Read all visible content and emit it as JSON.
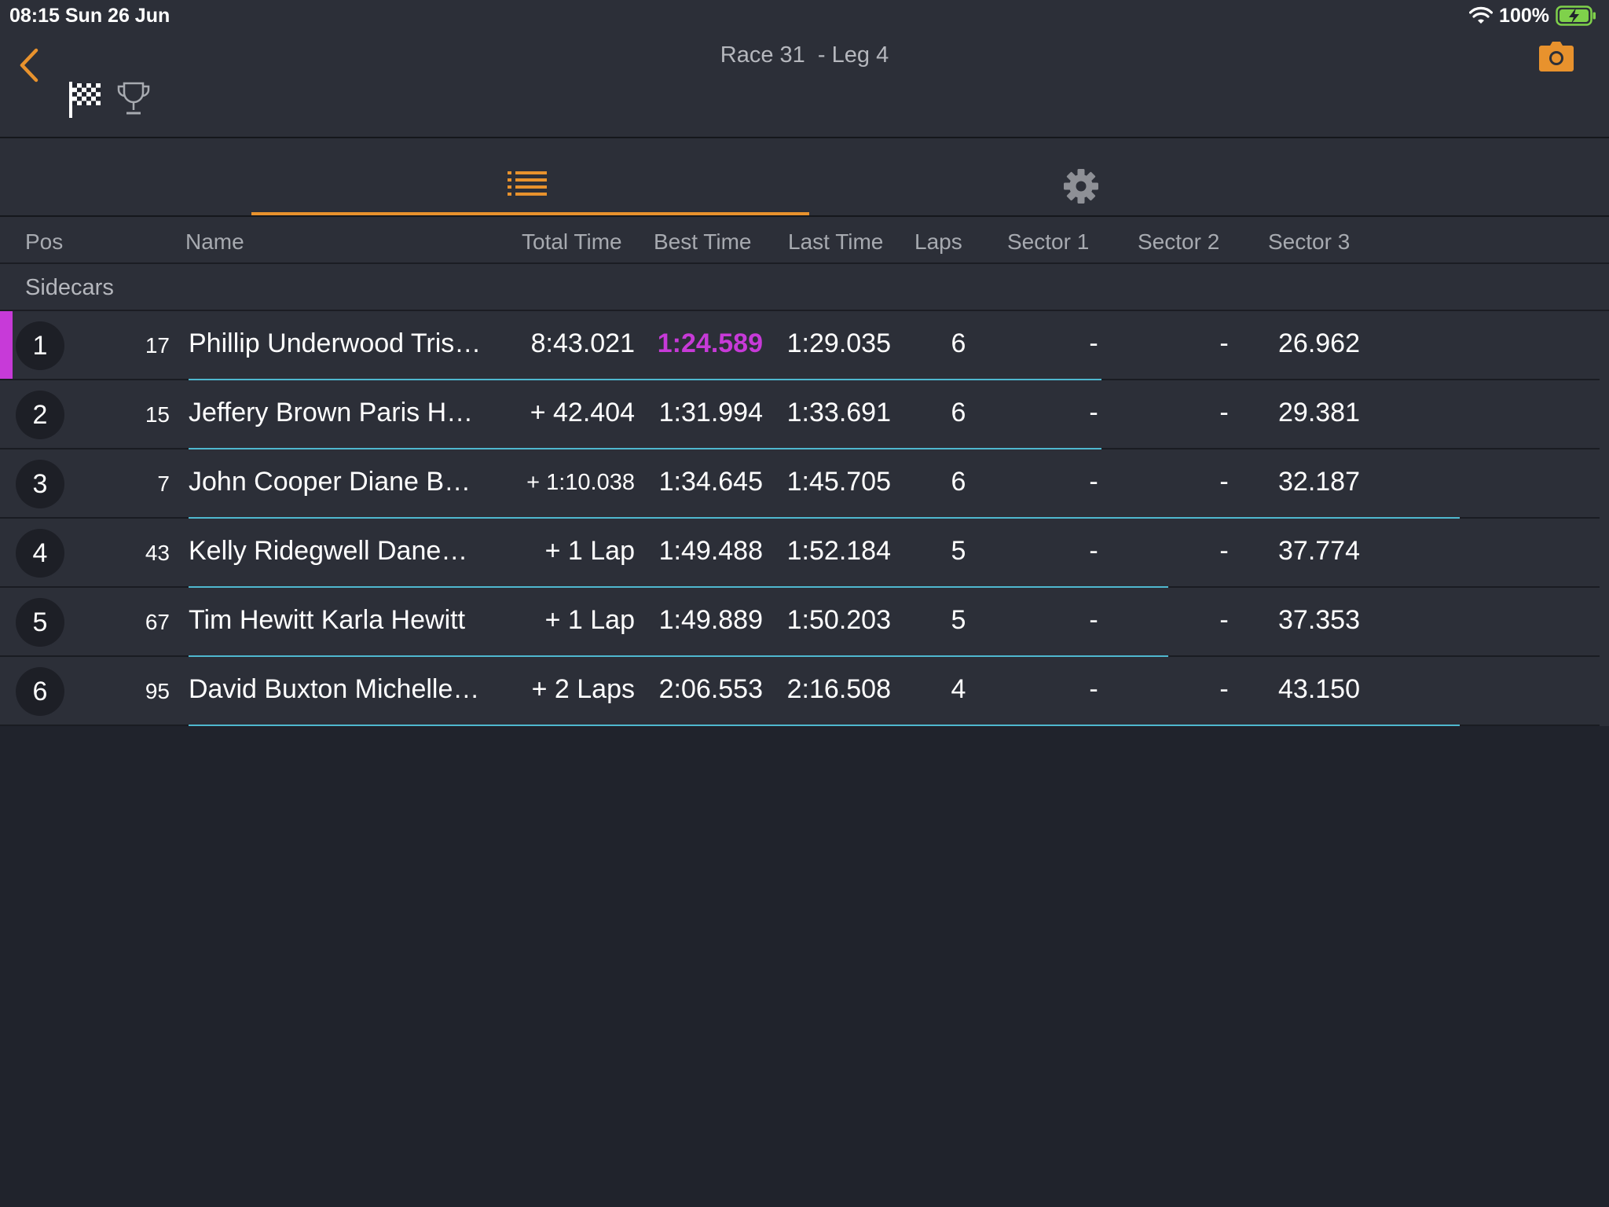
{
  "status_bar": {
    "time": "08:15   Sun 26 Jun",
    "battery": "100%"
  },
  "header": {
    "title": "Race 31  - Leg 4",
    "back_icon": "chevron-left-icon",
    "flag_icon": "checkered-flag-icon",
    "trophy_icon": "trophy-icon",
    "camera_icon": "camera-icon"
  },
  "tabs": [
    {
      "icon": "list-icon",
      "selected": true
    },
    {
      "icon": "gear-icon",
      "selected": false
    }
  ],
  "columns": {
    "pos": "Pos",
    "name": "Name",
    "total": "Total Time",
    "best": "Best Time",
    "last": "Last Time",
    "laps": "Laps",
    "s1": "Sector 1",
    "s2": "Sector 2",
    "s3": "Sector 3"
  },
  "group": "Sidecars",
  "rows": [
    {
      "pos": "1",
      "num": "17",
      "name": "Phillip Underwood Tris…",
      "total": "8:43.021",
      "best": "1:24.589",
      "last": "1:29.035",
      "laps": "6",
      "s1": "-",
      "s2": "-",
      "s3": "26.962"
    },
    {
      "pos": "2",
      "num": "15",
      "name": "Jeffery Brown Paris H…",
      "total": "+ 42.404",
      "best": "1:31.994",
      "last": "1:33.691",
      "laps": "6",
      "s1": "-",
      "s2": "-",
      "s3": "29.381"
    },
    {
      "pos": "3",
      "num": "7",
      "name": "John Cooper Diane B…",
      "total": "+ 1:10.038",
      "best": "1:34.645",
      "last": "1:45.705",
      "laps": "6",
      "s1": "-",
      "s2": "-",
      "s3": "32.187"
    },
    {
      "pos": "4",
      "num": "43",
      "name": "Kelly Ridegwell Dane…",
      "total": "+ 1 Lap",
      "best": "1:49.488",
      "last": "1:52.184",
      "laps": "5",
      "s1": "-",
      "s2": "-",
      "s3": "37.774"
    },
    {
      "pos": "5",
      "num": "67",
      "name": "Tim Hewitt Karla Hewitt",
      "total": "+ 1 Lap",
      "best": "1:49.889",
      "last": "1:50.203",
      "laps": "5",
      "s1": "-",
      "s2": "-",
      "s3": "37.353"
    },
    {
      "pos": "6",
      "num": "95",
      "name": "David Buxton Michelle…",
      "total": "+ 2 Laps",
      "best": "2:06.553",
      "last": "2:16.508",
      "laps": "4",
      "s1": "-",
      "s2": "-",
      "s3": "43.150"
    }
  ],
  "colors": {
    "accent": "#e8922d",
    "fastest_lap": "#c73ad8",
    "progress_line": "#4fb8cf"
  }
}
